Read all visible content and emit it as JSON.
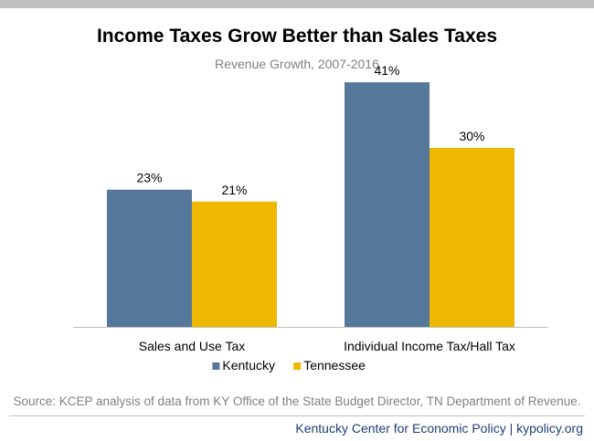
{
  "chart_data": {
    "type": "bar",
    "title": "Income Taxes Grow Better than Sales Taxes",
    "subtitle": "Revenue Growth, 2007-2016",
    "categories": [
      "Sales and Use Tax",
      "Individual Income Tax/Hall Tax"
    ],
    "series": [
      {
        "name": "Kentucky",
        "values": [
          23,
          41
        ],
        "labels": [
          "23%",
          "41%"
        ],
        "color": "#557799"
      },
      {
        "name": "Tennessee",
        "values": [
          21,
          30
        ],
        "labels": [
          "21%",
          "30%"
        ],
        "color": "#eeb800"
      }
    ],
    "ylim": [
      0,
      45
    ],
    "grid": false,
    "legend": "bottom"
  },
  "source": "Source: KCEP analysis of data from KY Office of the State Budget Director, TN Department of Revenue.",
  "footer": "Kentucky Center for Economic Policy | kypolicy.org"
}
